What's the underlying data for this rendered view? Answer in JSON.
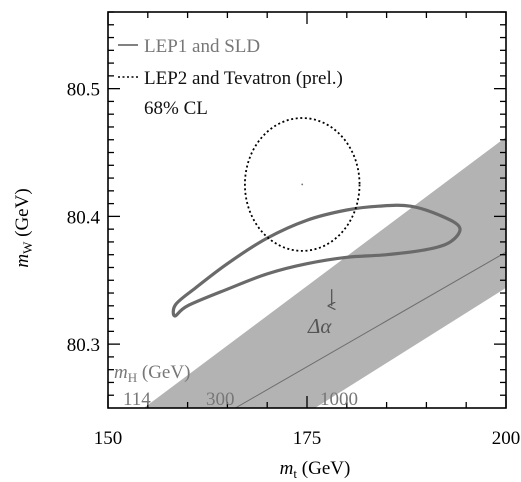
{
  "chart_data": {
    "type": "line",
    "xlabel": {
      "main": "m",
      "sub": "t",
      "unit": " (GeV)"
    },
    "ylabel": {
      "main": "m",
      "sub": "W",
      "unit": " (GeV)"
    },
    "xlim": [
      150,
      200
    ],
    "ylim": [
      80.25,
      80.56
    ],
    "x_ticks": [
      150,
      175,
      200
    ],
    "x_tick_labels": [
      "150",
      "175",
      "200"
    ],
    "y_ticks": [
      80.3,
      80.4,
      80.5
    ],
    "y_tick_labels": [
      "80.3",
      "80.4",
      "80.5"
    ],
    "grid": false,
    "legend": {
      "position": "top-left",
      "entries": [
        {
          "label": "LEP1 and SLD",
          "style": "solid",
          "color": "#707070"
        },
        {
          "label": "LEP2 and Tevatron (prel.)",
          "style": "dotted",
          "color": "#000000"
        },
        {
          "label": "68% CL",
          "style": "none",
          "color": "#000000"
        }
      ]
    },
    "higgs_band": {
      "label": {
        "main": "m",
        "sub": "H",
        "unit": " (GeV)"
      },
      "fill_color": "#b3b3b3",
      "lines": [
        {
          "label": "114",
          "bottom": [
            154.5,
            80.25
          ],
          "top": [
            200,
            80.462
          ]
        },
        {
          "label": "300",
          "bottom": [
            166.0,
            80.25
          ],
          "top": [
            200,
            80.372
          ]
        },
        {
          "label": "1000",
          "bottom": [
            176.0,
            80.25
          ],
          "top": [
            200,
            80.344
          ]
        }
      ]
    },
    "lep1_sld_ellipse": {
      "color": "#6a6a6a",
      "points": [
        [
          158.4,
          80.322
        ],
        [
          160,
          80.33
        ],
        [
          165,
          80.343
        ],
        [
          170,
          80.355
        ],
        [
          175,
          80.363
        ],
        [
          180,
          80.368
        ],
        [
          185,
          80.37
        ],
        [
          190,
          80.374
        ],
        [
          193,
          80.38
        ],
        [
          194.2,
          80.391
        ],
        [
          192,
          80.4
        ],
        [
          188,
          80.408
        ],
        [
          184,
          80.408
        ],
        [
          180,
          80.405
        ],
        [
          175,
          80.397
        ],
        [
          170,
          80.383
        ],
        [
          165,
          80.363
        ],
        [
          161,
          80.344
        ],
        [
          158.5,
          80.331
        ]
      ]
    },
    "lep2_tevatron_ellipse": {
      "color": "#000000",
      "center": [
        174.4,
        80.425
      ],
      "semi_axes": [
        7.2,
        0.052
      ],
      "center_mark": true
    },
    "annotation": {
      "text": "Δα",
      "arrow_from": [
        178.1,
        80.343
      ],
      "arrow_to": [
        178.1,
        80.33
      ]
    }
  }
}
